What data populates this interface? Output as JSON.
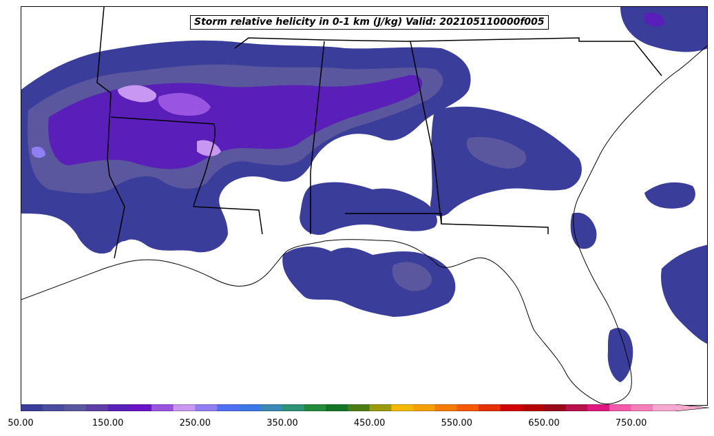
{
  "title": "Storm relative helicity in 0-1 km (J/kg) Valid: 202105110000f005",
  "colorbar": {
    "tick_labels": [
      "50.00",
      "150.00",
      "250.00",
      "350.00",
      "450.00",
      "550.00",
      "650.00",
      "750.00"
    ],
    "colors": [
      "#3a3d9a",
      "#4a4d9f",
      "#5a579f",
      "#5f3fa6",
      "#5a1fb8",
      "#6a14c7",
      "#9a55e0",
      "#c797f2",
      "#8f7ff2",
      "#4f70f5",
      "#3a78e6",
      "#3a8ab8",
      "#2e9277",
      "#228a3a",
      "#127525",
      "#4a7d14",
      "#9a9c0e",
      "#f5b800",
      "#f59f00",
      "#f57a00",
      "#f55a00",
      "#e63000",
      "#d10000",
      "#b80000",
      "#9a0a1a",
      "#b8104a",
      "#e01780",
      "#f55aaa",
      "#f57fb8",
      "#f7a8d0"
    ],
    "extend": "max"
  },
  "map": {
    "projection": "Southeastern United States",
    "field": "0-1 km storm relative helicity"
  }
}
